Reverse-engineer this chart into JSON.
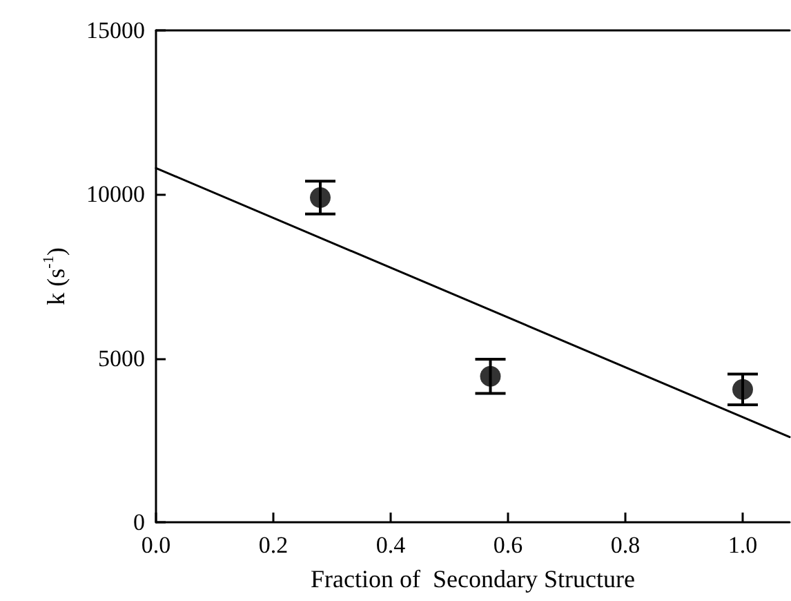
{
  "chart_data": {
    "type": "scatter",
    "xlabel": "Fraction of  Secondary Structure",
    "ylabel": "k (s$^{-1}$)",
    "xlim": [
      0,
      1.08
    ],
    "xticks": [
      {
        "value": 0,
        "label": "0.0"
      },
      0.2,
      0.4,
      0.6,
      0.8,
      {
        "value": 1,
        "label": "1.0"
      }
    ],
    "ylim": [
      0,
      15000
    ],
    "yticks": [
      0,
      5000,
      10000,
      15000
    ],
    "grid": false,
    "series": [
      {
        "color": "#000000",
        "marker": "circle",
        "x": [
          0.28,
          0.57,
          1.0
        ],
        "values": [
          9900,
          4450,
          4050
        ],
        "errors": [
          500,
          520,
          470
        ]
      },
      {
        "type": "line",
        "color": "#000000",
        "marker": "none",
        "x": [
          0,
          1.08
        ],
        "values": [
          10800,
          2600
        ]
      }
    ]
  }
}
